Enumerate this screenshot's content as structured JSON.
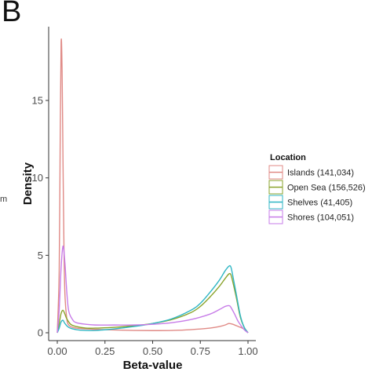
{
  "panel_label": "B",
  "edge_text": "m",
  "chart_data": {
    "type": "line",
    "xlabel": "Beta-value",
    "ylabel": "Density",
    "xlim": [
      0,
      1
    ],
    "ylim": [
      0,
      19
    ],
    "x_ticks": [
      0.0,
      0.25,
      0.5,
      0.75,
      1.0
    ],
    "x_tick_labels": [
      "0.00",
      "0.25",
      "0.50",
      "0.75",
      "1.00"
    ],
    "y_ticks": [
      0,
      5,
      10,
      15
    ],
    "y_tick_labels": [
      "0",
      "5",
      "10",
      "15"
    ],
    "grid": false,
    "legend": {
      "title": "Location",
      "placement": "right"
    },
    "series": [
      {
        "name": "Islands (141,034)",
        "color": "#E08A86",
        "x": [
          0.0,
          0.01,
          0.015,
          0.02,
          0.025,
          0.03,
          0.035,
          0.04,
          0.05,
          0.06,
          0.08,
          0.1,
          0.15,
          0.2,
          0.3,
          0.4,
          0.5,
          0.6,
          0.7,
          0.8,
          0.85,
          0.88,
          0.9,
          0.92,
          0.95,
          0.97,
          0.99,
          1.0
        ],
        "y": [
          0.0,
          4.0,
          12.0,
          18.7,
          17.0,
          11.0,
          5.5,
          2.5,
          0.9,
          0.5,
          0.35,
          0.3,
          0.25,
          0.22,
          0.18,
          0.15,
          0.14,
          0.15,
          0.2,
          0.3,
          0.4,
          0.5,
          0.6,
          0.55,
          0.4,
          0.3,
          0.15,
          0.0
        ]
      },
      {
        "name": "Open Sea (156,526)",
        "color": "#8AA32C",
        "x": [
          0.0,
          0.01,
          0.02,
          0.03,
          0.04,
          0.05,
          0.07,
          0.1,
          0.15,
          0.2,
          0.3,
          0.4,
          0.5,
          0.6,
          0.7,
          0.75,
          0.8,
          0.85,
          0.88,
          0.9,
          0.91,
          0.92,
          0.94,
          0.96,
          0.98,
          1.0
        ],
        "y": [
          0.0,
          0.6,
          1.25,
          1.45,
          1.2,
          0.9,
          0.55,
          0.4,
          0.3,
          0.3,
          0.35,
          0.45,
          0.6,
          0.85,
          1.3,
          1.7,
          2.3,
          3.0,
          3.5,
          3.8,
          3.75,
          3.3,
          2.2,
          1.0,
          0.35,
          0.0
        ]
      },
      {
        "name": "Shelves (41,405)",
        "color": "#2FB6C4",
        "x": [
          0.0,
          0.01,
          0.02,
          0.03,
          0.04,
          0.06,
          0.1,
          0.15,
          0.2,
          0.3,
          0.4,
          0.5,
          0.6,
          0.7,
          0.75,
          0.8,
          0.85,
          0.88,
          0.9,
          0.91,
          0.92,
          0.94,
          0.96,
          0.98,
          1.0
        ],
        "y": [
          0.0,
          0.3,
          0.7,
          0.8,
          0.6,
          0.35,
          0.2,
          0.15,
          0.15,
          0.25,
          0.4,
          0.6,
          0.9,
          1.45,
          1.9,
          2.6,
          3.4,
          4.0,
          4.3,
          4.25,
          3.7,
          2.4,
          1.1,
          0.35,
          0.0
        ]
      },
      {
        "name": "Shores (104,051)",
        "color": "#C77CE8",
        "x": [
          0.0,
          0.01,
          0.02,
          0.03,
          0.04,
          0.05,
          0.06,
          0.08,
          0.1,
          0.15,
          0.2,
          0.3,
          0.4,
          0.5,
          0.6,
          0.7,
          0.8,
          0.85,
          0.88,
          0.9,
          0.91,
          0.93,
          0.95,
          0.98,
          1.0
        ],
        "y": [
          0.0,
          1.5,
          4.2,
          5.6,
          4.5,
          2.6,
          1.4,
          0.85,
          0.65,
          0.55,
          0.5,
          0.5,
          0.5,
          0.55,
          0.65,
          0.85,
          1.2,
          1.5,
          1.7,
          1.75,
          1.65,
          1.2,
          0.7,
          0.2,
          0.0
        ]
      }
    ]
  }
}
